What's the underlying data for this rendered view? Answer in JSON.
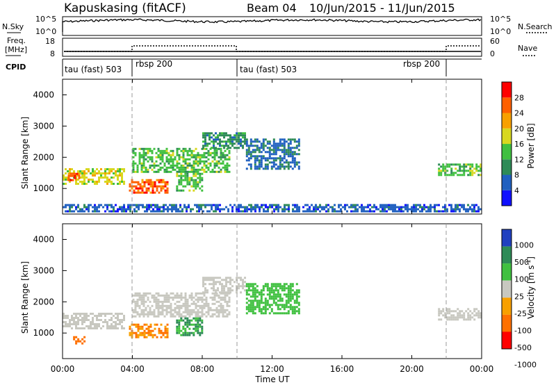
{
  "header": {
    "station": "Kapuskasing (fitACF)",
    "beam": "Beam 04",
    "dates": "10/Jun/2015 - 11/Jun/2015"
  },
  "panels": {
    "nsky": {
      "left_label": "N.Sky",
      "left_ticks": [
        "10^5",
        "10^0"
      ],
      "right_ticks": [
        "10^5",
        "10^0"
      ],
      "right_label": "N.Search"
    },
    "freq": {
      "left_label_1": "Freq.",
      "left_label_2": "[MHz]",
      "left_ticks": [
        "18",
        "8"
      ],
      "right_ticks": [
        "60",
        "0"
      ],
      "right_label": "Nave"
    },
    "cpid": {
      "label": "CPID",
      "segments": [
        "tau (fast) 503",
        "rbsp 200",
        "tau (fast) 503",
        "rbsp 200"
      ]
    }
  },
  "axes": {
    "ylabel": "Slant Range [km]",
    "xlabel": "Time UT",
    "x_ticks": [
      "00:00",
      "04:00",
      "08:00",
      "12:00",
      "16:00",
      "20:00",
      "00:00"
    ],
    "y_ticks": [
      "1000",
      "2000",
      "3000",
      "4000"
    ]
  },
  "colorbars": {
    "power": {
      "label": "Power [dB]",
      "ticks": [
        "4",
        "8",
        "12",
        "16",
        "20",
        "24",
        "28"
      ],
      "colors": [
        "#1010ff",
        "#2060c0",
        "#2e8b57",
        "#40c040",
        "#d8d820",
        "#f8a000",
        "#ff6000",
        "#ff0000"
      ]
    },
    "velocity": {
      "label_main": "Velocity",
      "label_unit": "[m s",
      "label_sup": "-1",
      "label_close": "]",
      "ticks": [
        "1000",
        "500",
        "100",
        "25",
        "-25",
        "-100",
        "-500",
        "-1000"
      ],
      "colors": [
        "#2040c0",
        "#2e8b57",
        "#40c040",
        "#c8c8c0",
        "#f8a000",
        "#ff7000",
        "#ff0000"
      ]
    }
  },
  "chart_data": [
    {
      "type": "heatmap",
      "name": "Power",
      "x_range": [
        "00:00",
        "24:00"
      ],
      "ylim": [
        180,
        4500
      ],
      "zlim": [
        0,
        30
      ],
      "bands": [
        {
          "t_start": 0.0,
          "t_end": 3.5,
          "r_low": 1150,
          "r_high": 1650,
          "value": 18
        },
        {
          "t_start": 0.3,
          "t_end": 1.0,
          "r_low": 1250,
          "r_high": 1500,
          "value": 26
        },
        {
          "t_start": 3.8,
          "t_end": 6.0,
          "r_low": 850,
          "r_high": 1300,
          "value": 26
        },
        {
          "t_start": 4.0,
          "t_end": 9.5,
          "r_low": 1500,
          "r_high": 2300,
          "value": 14
        },
        {
          "t_start": 8.0,
          "t_end": 10.5,
          "r_low": 2300,
          "r_high": 2800,
          "value": 10
        },
        {
          "t_start": 10.5,
          "t_end": 13.5,
          "r_low": 1600,
          "r_high": 2600,
          "value": 7
        },
        {
          "t_start": 6.5,
          "t_end": 8.0,
          "r_low": 950,
          "r_high": 1500,
          "value": 14
        },
        {
          "t_start": 21.5,
          "t_end": 24.0,
          "r_low": 1400,
          "r_high": 1800,
          "value": 14
        },
        {
          "t_start": 0.0,
          "t_end": 24.0,
          "r_low": 250,
          "r_high": 500,
          "value": 6
        }
      ]
    },
    {
      "type": "heatmap",
      "name": "Velocity",
      "x_range": [
        "00:00",
        "24:00"
      ],
      "ylim": [
        180,
        4500
      ],
      "bands": [
        {
          "t_start": 0.0,
          "t_end": 3.5,
          "r_low": 1150,
          "r_high": 1650,
          "value": 0
        },
        {
          "t_start": 3.8,
          "t_end": 6.0,
          "r_low": 850,
          "r_high": 1300,
          "value": -100
        },
        {
          "t_start": 4.0,
          "t_end": 9.5,
          "r_low": 1500,
          "r_high": 2300,
          "value": 0
        },
        {
          "t_start": 8.0,
          "t_end": 10.5,
          "r_low": 2300,
          "r_high": 2800,
          "value": 0
        },
        {
          "t_start": 6.5,
          "t_end": 8.0,
          "r_low": 950,
          "r_high": 1500,
          "value": 100
        },
        {
          "t_start": 10.5,
          "t_end": 13.5,
          "r_low": 1600,
          "r_high": 2600,
          "value": 50
        },
        {
          "t_start": 21.5,
          "t_end": 24.0,
          "r_low": 1400,
          "r_high": 1800,
          "value": 0
        },
        {
          "t_start": 0.6,
          "t_end": 1.2,
          "r_low": 650,
          "r_high": 900,
          "value": -300
        }
      ]
    }
  ]
}
